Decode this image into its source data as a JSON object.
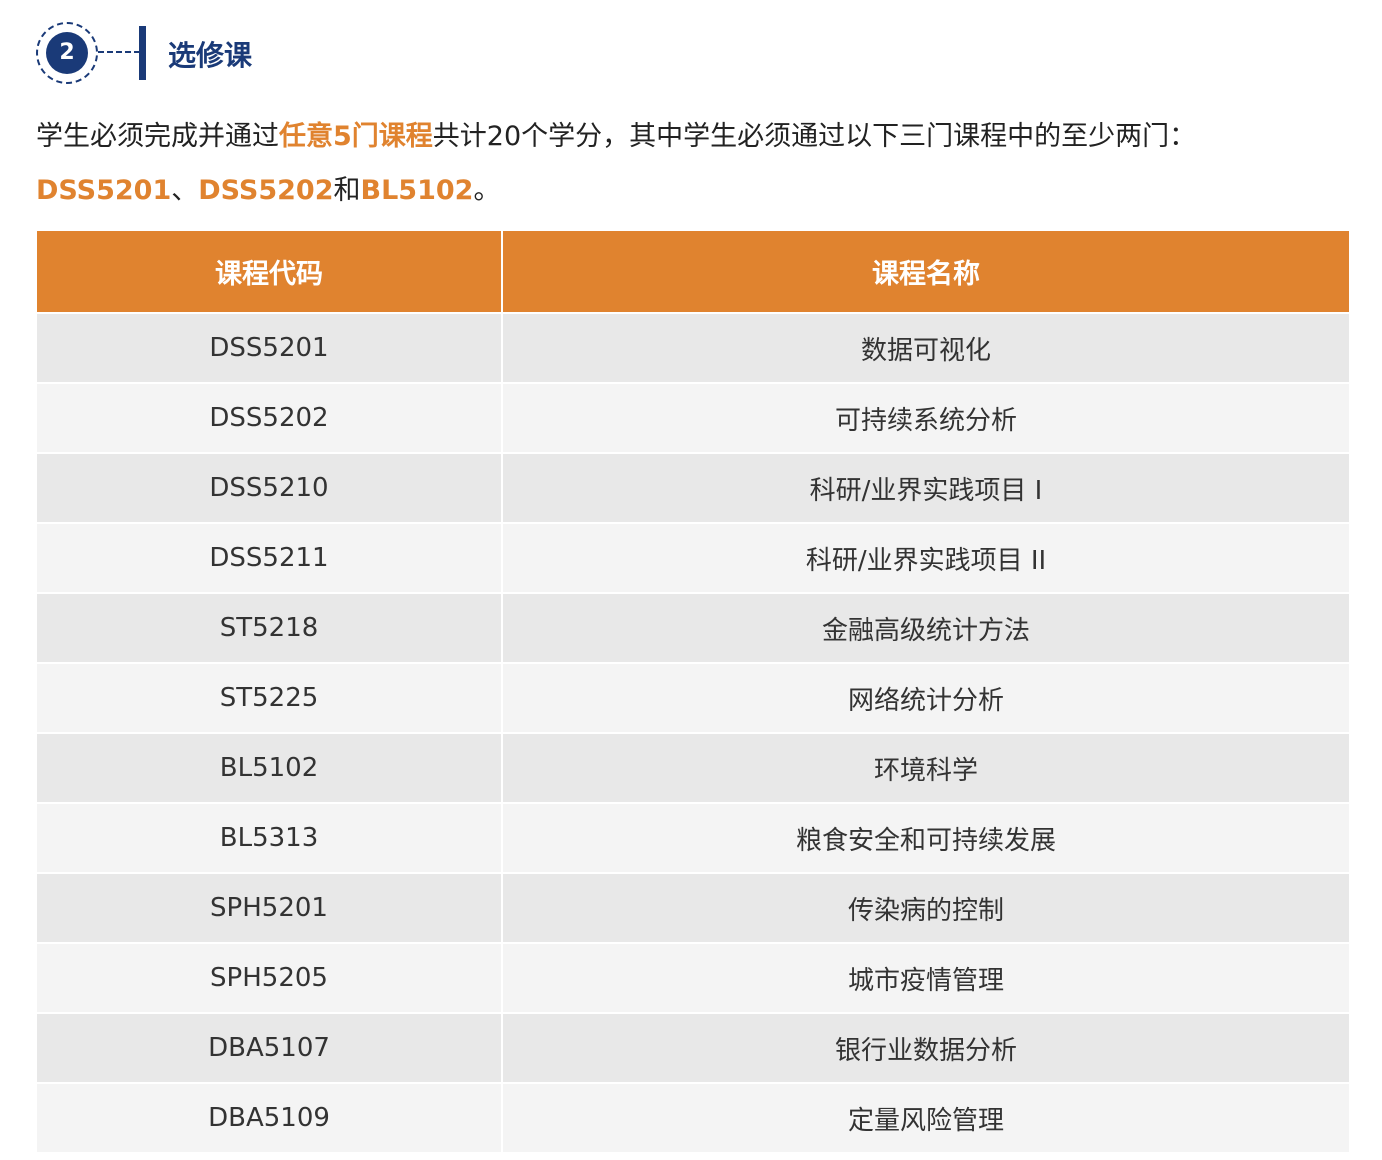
{
  "section": {
    "number": "2",
    "title": "选修课"
  },
  "intro": {
    "p1": "学生必须完成并通过",
    "h1": "任意5门课程",
    "p2": "共计20个学分，其中学生必须通过以下三门课程中的至少两门：",
    "h2": "DSS5201",
    "p3": "、",
    "h3": "DSS5202",
    "p4": "和",
    "h4": "BL5102",
    "p5": "。"
  },
  "colors": {
    "accent": "#e0832f",
    "navy": "#1a3a78"
  },
  "table": {
    "headers": [
      "课程代码",
      "课程名称"
    ],
    "rows": [
      [
        "DSS5201",
        "数据可视化"
      ],
      [
        "DSS5202",
        "可持续系统分析"
      ],
      [
        "DSS5210",
        "科研/业界实践项目 I"
      ],
      [
        "DSS5211",
        "科研/业界实践项目 II"
      ],
      [
        "ST5218",
        "金融高级统计方法"
      ],
      [
        "ST5225",
        "网络统计分析"
      ],
      [
        "BL5102",
        "环境科学"
      ],
      [
        "BL5313",
        "粮食安全和可持续发展"
      ],
      [
        "SPH5201",
        "传染病的控制"
      ],
      [
        "SPH5205",
        "城市疫情管理"
      ],
      [
        "DBA5107",
        "银行业数据分析"
      ],
      [
        "DBA5109",
        "定量风险管理"
      ]
    ]
  }
}
